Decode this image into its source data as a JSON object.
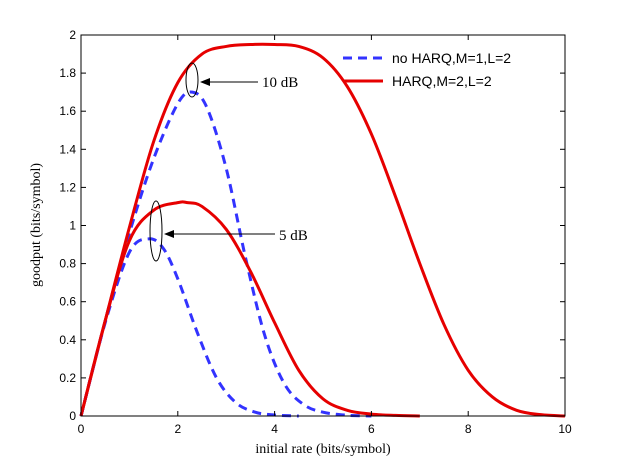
{
  "chart_data": {
    "type": "line",
    "xlabel": "initial rate (bits/symbol)",
    "ylabel": "goodput (bits/symbol)",
    "xlim": [
      0,
      10
    ],
    "ylim": [
      0,
      2
    ],
    "xticks": [
      0,
      2,
      4,
      6,
      8,
      10
    ],
    "yticks": [
      0,
      0.2,
      0.4,
      0.6,
      0.8,
      1,
      1.2,
      1.4,
      1.6,
      1.8,
      2
    ],
    "xtick_labels": [
      "0",
      "2",
      "4",
      "6",
      "8",
      "10"
    ],
    "ytick_labels": [
      "0",
      "0.2",
      "0.4",
      "0.6",
      "0.8",
      "1",
      "1.2",
      "1.4",
      "1.6",
      "1.8",
      "2"
    ],
    "grid": false,
    "legend_position": "top-right",
    "colors": {
      "blue": "#3333ff",
      "red": "#e60000"
    },
    "series": [
      {
        "name": "no HARQ,M=1,L=2",
        "snr": "10 dB",
        "style": "dashed",
        "color": "#3333ff",
        "x": [
          0,
          0.5,
          1.0,
          1.5,
          2.0,
          2.3,
          2.6,
          3.0,
          3.4,
          3.8,
          4.2,
          4.6,
          5.0,
          5.5,
          6.0
        ],
        "y": [
          0,
          0.5,
          0.96,
          1.35,
          1.64,
          1.7,
          1.62,
          1.3,
          0.83,
          0.42,
          0.17,
          0.06,
          0.02,
          0.004,
          0
        ]
      },
      {
        "name": "HARQ,M=2,L=2",
        "snr": "10 dB",
        "style": "solid",
        "color": "#e60000",
        "x": [
          0,
          0.5,
          1.0,
          1.5,
          2.0,
          2.5,
          3.0,
          3.5,
          4.0,
          4.5,
          5.0,
          5.5,
          6.0,
          6.5,
          7.0,
          7.5,
          8.0,
          8.5,
          9.0,
          9.5,
          10.0
        ],
        "y": [
          0,
          0.5,
          0.99,
          1.44,
          1.75,
          1.9,
          1.94,
          1.95,
          1.95,
          1.94,
          1.88,
          1.73,
          1.48,
          1.15,
          0.8,
          0.48,
          0.24,
          0.1,
          0.03,
          0.007,
          0
        ]
      },
      {
        "name": "no HARQ,M=1,L=2",
        "snr": "5 dB",
        "style": "dashed",
        "color": "#3333ff",
        "x": [
          0,
          0.5,
          1.0,
          1.4,
          1.7,
          2.0,
          2.4,
          2.8,
          3.2,
          3.6,
          4.0,
          4.5
        ],
        "y": [
          0,
          0.49,
          0.86,
          0.93,
          0.88,
          0.72,
          0.44,
          0.2,
          0.07,
          0.02,
          0.005,
          0
        ]
      },
      {
        "name": "HARQ,M=2,L=2",
        "snr": "5 dB",
        "style": "solid",
        "color": "#e60000",
        "x": [
          0,
          0.5,
          1.0,
          1.5,
          2.0,
          2.2,
          2.5,
          3.0,
          3.5,
          4.0,
          4.5,
          5.0,
          5.5,
          6.0,
          6.5,
          7.0
        ],
        "y": [
          0,
          0.5,
          0.92,
          1.08,
          1.12,
          1.12,
          1.1,
          0.98,
          0.76,
          0.49,
          0.24,
          0.09,
          0.03,
          0.01,
          0.003,
          0
        ]
      }
    ],
    "legend": [
      {
        "label": "no HARQ,M=1,L=2",
        "style": "dashed",
        "color": "#3333ff"
      },
      {
        "label": "HARQ,M=2,L=2",
        "style": "solid",
        "color": "#e60000"
      }
    ],
    "annotations": [
      {
        "text": "10 dB",
        "target": [
          2.3,
          1.74
        ]
      },
      {
        "text": "5 dB",
        "target": [
          1.55,
          0.96
        ]
      }
    ]
  }
}
